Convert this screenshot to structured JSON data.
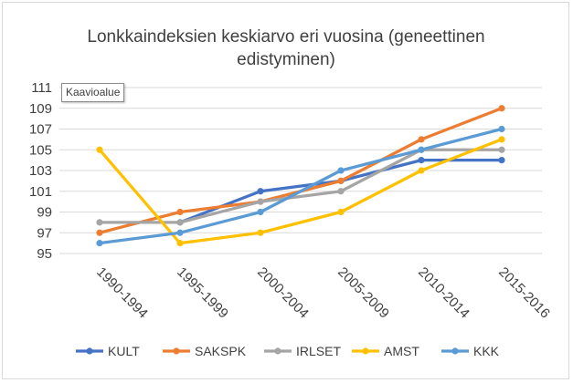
{
  "chart_data": {
    "type": "line",
    "title_lines": [
      "Lonkkaindeksien keskiarvo eri vuosina (geneettinen",
      "edistyminen)"
    ],
    "categories": [
      "1990-1994",
      "1995-1999",
      "2000-2004",
      "2005-2009",
      "2010-2014",
      "2015-2016"
    ],
    "series": [
      {
        "name": "KULT",
        "color": "#4472c4",
        "values": [
          null,
          98,
          101,
          102,
          104,
          104
        ]
      },
      {
        "name": "SAKSPK",
        "color": "#ed7d31",
        "values": [
          97,
          99,
          100,
          102,
          106,
          109
        ]
      },
      {
        "name": "IRLSET",
        "color": "#a5a5a5",
        "values": [
          98,
          98,
          100,
          101,
          105,
          105
        ]
      },
      {
        "name": "AMST",
        "color": "#ffc000",
        "values": [
          105,
          96,
          97,
          99,
          103,
          106
        ]
      },
      {
        "name": "KKK",
        "color": "#5b9bd5",
        "values": [
          96,
          97,
          99,
          103,
          105,
          107
        ]
      }
    ],
    "ylim": [
      95,
      111
    ],
    "yticks": [
      95,
      97,
      99,
      101,
      103,
      105,
      107,
      109,
      111
    ],
    "ytick_labels": [
      "95",
      "97",
      "99",
      "101",
      "103",
      "105",
      "107",
      "109",
      "111"
    ],
    "grid": true,
    "legend_position": "bottom"
  },
  "tooltip": {
    "text": "Kaavioalue"
  }
}
